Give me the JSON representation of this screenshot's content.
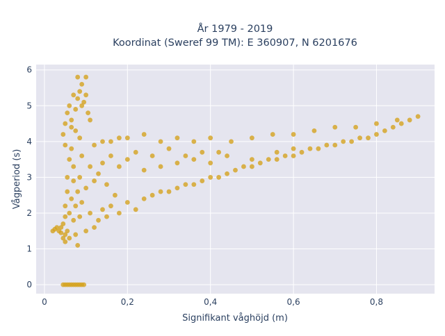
{
  "chart_data": {
    "type": "scatter",
    "title_lines": [
      "År 1979 - 2019",
      "Koordinat (Sweref 99 TM): E 360907, N 6201676"
    ],
    "xlabel": "Signifikant våghöjd (m)",
    "ylabel": "Vågperiod (s)",
    "xlim": [
      -0.02,
      0.94
    ],
    "ylim": [
      -0.25,
      6.15
    ],
    "x_ticks": [
      0,
      0.2,
      0.4,
      0.6,
      0.8
    ],
    "x_tick_labels": [
      "0",
      "0,2",
      "0,4",
      "0,6",
      "0,8"
    ],
    "y_ticks": [
      0,
      1,
      2,
      3,
      4,
      5,
      6
    ],
    "y_tick_labels": [
      "0",
      "1",
      "2",
      "3",
      "4",
      "5",
      "6"
    ],
    "grid": true,
    "legend": "none",
    "marker_color": "#d4a21f",
    "plot_background": "#e5e5ef",
    "series": [
      {
        "x": [
          0.02,
          0.025,
          0.03,
          0.035,
          0.04,
          0.04,
          0.045,
          0.045,
          0.05,
          0.05,
          0.05,
          0.05,
          0.055,
          0.055,
          0.055,
          0.06,
          0.06,
          0.06,
          0.065,
          0.065,
          0.07,
          0.07,
          0.07,
          0.075,
          0.075,
          0.08,
          0.08,
          0.085,
          0.085,
          0.09,
          0.09,
          0.1,
          0.1,
          0.11,
          0.11,
          0.12,
          0.12,
          0.13,
          0.13,
          0.14,
          0.14,
          0.15,
          0.15,
          0.16,
          0.16,
          0.17,
          0.18,
          0.18,
          0.2,
          0.2,
          0.22,
          0.22,
          0.24,
          0.24,
          0.26,
          0.26,
          0.28,
          0.28,
          0.3,
          0.3,
          0.32,
          0.32,
          0.34,
          0.34,
          0.36,
          0.36,
          0.38,
          0.38,
          0.4,
          0.4,
          0.42,
          0.42,
          0.44,
          0.44,
          0.46,
          0.48,
          0.5,
          0.5,
          0.52,
          0.54,
          0.56,
          0.56,
          0.58,
          0.6,
          0.6,
          0.62,
          0.64,
          0.66,
          0.68,
          0.7,
          0.72,
          0.74,
          0.76,
          0.78,
          0.8,
          0.82,
          0.84,
          0.86,
          0.88,
          0.9,
          0.045,
          0.05,
          0.055,
          0.06,
          0.065,
          0.07,
          0.075,
          0.08,
          0.085,
          0.09,
          0.095,
          0.1,
          0.105,
          0.11,
          0.08,
          0.09,
          0.1,
          0.065,
          0.075,
          0.085,
          0.045,
          0.05,
          0.055,
          0.06,
          0.065,
          0.07,
          0.075,
          0.08,
          0.085,
          0.09,
          0.095,
          0.05,
          0.12,
          0.14,
          0.16,
          0.18,
          0.2,
          0.24,
          0.28,
          0.32,
          0.36,
          0.4,
          0.45,
          0.5,
          0.55,
          0.6,
          0.65,
          0.7,
          0.75,
          0.8,
          0.85
        ],
        "y": [
          1.5,
          1.55,
          1.6,
          1.5,
          1.45,
          1.6,
          1.7,
          1.3,
          1.9,
          1.4,
          2.2,
          1.2,
          2.6,
          1.5,
          3.0,
          2.0,
          3.5,
          1.3,
          2.4,
          3.8,
          1.8,
          2.9,
          3.3,
          2.2,
          1.4,
          2.6,
          1.1,
          3.0,
          1.9,
          2.3,
          3.6,
          1.5,
          2.7,
          2.0,
          3.3,
          1.6,
          2.9,
          1.8,
          3.1,
          2.1,
          3.4,
          1.9,
          2.8,
          2.2,
          3.6,
          2.5,
          2.0,
          3.3,
          2.3,
          3.5,
          2.1,
          3.7,
          2.4,
          3.2,
          2.5,
          3.6,
          2.6,
          3.3,
          2.6,
          3.8,
          2.7,
          3.4,
          2.8,
          3.6,
          2.8,
          3.5,
          2.9,
          3.7,
          3.0,
          3.4,
          3.0,
          3.7,
          3.1,
          3.6,
          3.2,
          3.3,
          3.3,
          3.5,
          3.4,
          3.5,
          3.5,
          3.7,
          3.6,
          3.6,
          3.8,
          3.7,
          3.8,
          3.8,
          3.9,
          3.9,
          4.0,
          4.0,
          4.1,
          4.1,
          4.2,
          4.3,
          4.4,
          4.5,
          4.6,
          4.7,
          4.2,
          4.5,
          4.8,
          5.0,
          4.6,
          5.3,
          4.9,
          5.2,
          5.4,
          5.0,
          5.1,
          5.3,
          4.8,
          4.6,
          5.8,
          5.6,
          5.8,
          4.4,
          4.3,
          4.1,
          0,
          0,
          0,
          0,
          0,
          0,
          0,
          0,
          0,
          0,
          0,
          3.9,
          3.9,
          4.0,
          4.0,
          4.1,
          4.1,
          4.2,
          4.0,
          4.1,
          4.0,
          4.1,
          4.0,
          4.1,
          4.2,
          4.2,
          4.3,
          4.4,
          4.4,
          4.5,
          4.6
        ]
      }
    ]
  }
}
